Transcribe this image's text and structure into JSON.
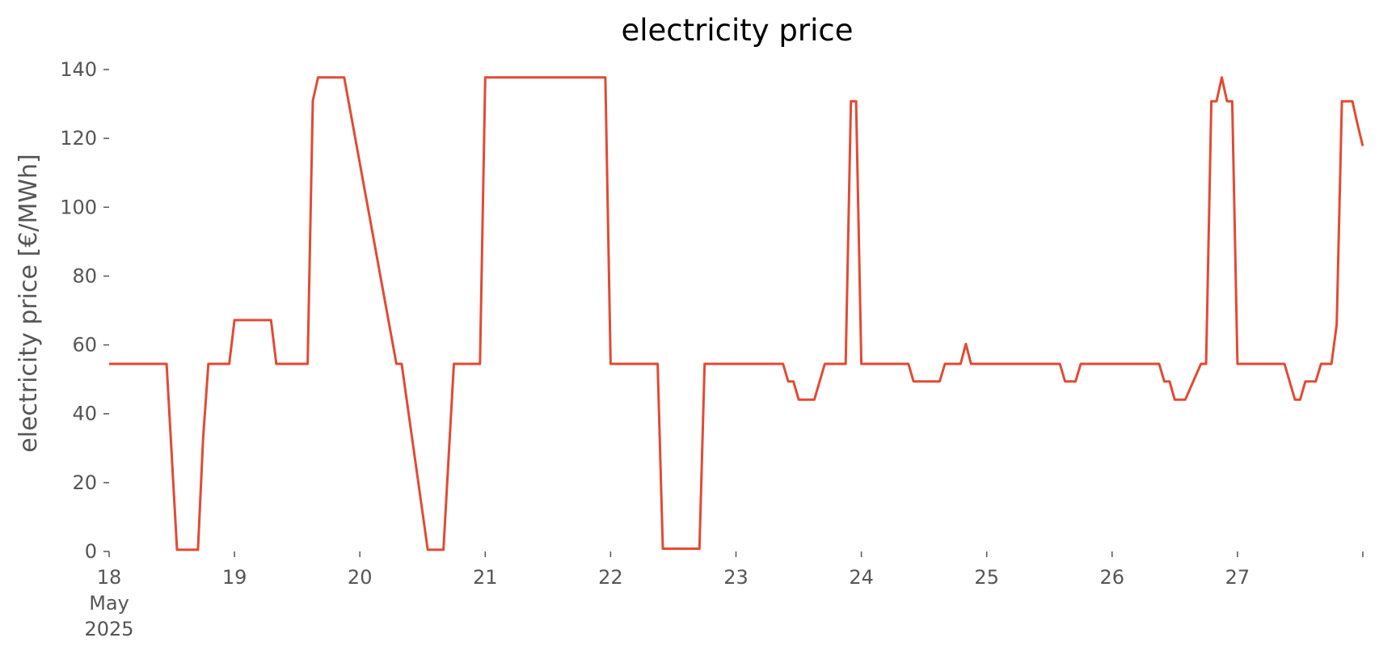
{
  "chart_data": {
    "type": "line",
    "title": "electricity price",
    "xlabel": "",
    "ylabel": "electricity price [€/MWh]",
    "ylim": [
      0,
      140
    ],
    "yticks": [
      "0",
      "20",
      "40",
      "60",
      "80",
      "100",
      "120",
      "140"
    ],
    "xlim": [
      "2025-05-18T00:00",
      "2025-05-28T00:00"
    ],
    "xticks": [
      {
        "at": "2025-05-18T00:00",
        "label": [
          "18",
          "May",
          "2025"
        ]
      },
      {
        "at": "2025-05-19T00:00",
        "label": [
          "19"
        ]
      },
      {
        "at": "2025-05-20T00:00",
        "label": [
          "20"
        ]
      },
      {
        "at": "2025-05-21T00:00",
        "label": [
          "21"
        ]
      },
      {
        "at": "2025-05-22T00:00",
        "label": [
          "22"
        ]
      },
      {
        "at": "2025-05-23T00:00",
        "label": [
          "23"
        ]
      },
      {
        "at": "2025-05-24T00:00",
        "label": [
          "24"
        ]
      },
      {
        "at": "2025-05-25T00:00",
        "label": [
          "25"
        ]
      },
      {
        "at": "2025-05-26T00:00",
        "label": [
          "26"
        ]
      },
      {
        "at": "2025-05-27T00:00",
        "label": [
          "27"
        ]
      },
      {
        "at": "2025-05-28T00:00",
        "label": [
          ""
        ]
      }
    ],
    "grid": false,
    "legend": "none",
    "color": "#e24a33",
    "series": [
      {
        "x": [
          "2025-05-18T00:00",
          "2025-05-18T10:00",
          "2025-05-18T11:00",
          "2025-05-18T13:00",
          "2025-05-18T17:00",
          "2025-05-18T18:00",
          "2025-05-18T19:00",
          "2025-05-18T23:00",
          "2025-05-19T00:00",
          "2025-05-19T07:00",
          "2025-05-19T08:00",
          "2025-05-19T14:00",
          "2025-05-19T15:00",
          "2025-05-19T16:00",
          "2025-05-19T21:00",
          "2025-05-20T07:00",
          "2025-05-20T08:00",
          "2025-05-20T13:00",
          "2025-05-20T16:00",
          "2025-05-20T18:00",
          "2025-05-20T23:00",
          "2025-05-21T00:00",
          "2025-05-21T23:00",
          "2025-05-22T00:00",
          "2025-05-22T09:00",
          "2025-05-22T10:00",
          "2025-05-22T17:00",
          "2025-05-22T18:00",
          "2025-05-23T09:00",
          "2025-05-23T10:00",
          "2025-05-23T11:00",
          "2025-05-23T12:00",
          "2025-05-23T15:00",
          "2025-05-23T17:00",
          "2025-05-23T21:00",
          "2025-05-23T22:00",
          "2025-05-23T23:00",
          "2025-05-24T00:00",
          "2025-05-24T09:00",
          "2025-05-24T10:00",
          "2025-05-24T15:00",
          "2025-05-24T16:00",
          "2025-05-24T19:00",
          "2025-05-24T20:00",
          "2025-05-24T21:00",
          "2025-05-25T14:00",
          "2025-05-25T15:00",
          "2025-05-25T17:00",
          "2025-05-25T18:00",
          "2025-05-26T09:00",
          "2025-05-26T10:00",
          "2025-05-26T11:00",
          "2025-05-26T12:00",
          "2025-05-26T14:00",
          "2025-05-26T17:00",
          "2025-05-26T18:00",
          "2025-05-26T19:00",
          "2025-05-26T20:00",
          "2025-05-26T21:00",
          "2025-05-26T22:00",
          "2025-05-26T23:00",
          "2025-05-27T00:00",
          "2025-05-27T09:00",
          "2025-05-27T11:00",
          "2025-05-27T12:00",
          "2025-05-27T13:00",
          "2025-05-27T15:00",
          "2025-05-27T16:00",
          "2025-05-27T18:00",
          "2025-05-27T19:00",
          "2025-05-27T20:00",
          "2025-05-27T22:00",
          "2025-05-27T23:00",
          "2025-05-27T23:59"
        ],
        "y": [
          54.5,
          54.5,
          54.5,
          0.5,
          0.5,
          33,
          54.5,
          54.5,
          67.2,
          67.2,
          54.5,
          54.5,
          131,
          137.7,
          137.7,
          54.5,
          54.5,
          0.5,
          0.5,
          54.5,
          54.5,
          137.7,
          137.7,
          54.5,
          54.5,
          0.8,
          0.8,
          54.5,
          54.5,
          49.4,
          49.4,
          44.1,
          44.1,
          54.5,
          54.5,
          130.8,
          130.8,
          54.5,
          54.5,
          49.4,
          49.4,
          54.5,
          54.5,
          60.3,
          54.5,
          54.5,
          49.4,
          49.4,
          54.5,
          54.5,
          49.4,
          49.4,
          44.1,
          44.1,
          54.5,
          54.5,
          130.8,
          130.8,
          137.7,
          130.8,
          130.8,
          54.5,
          54.5,
          44.1,
          44.1,
          49.4,
          49.4,
          54.5,
          54.5,
          66,
          130.8,
          130.8,
          124,
          117.8
        ]
      }
    ]
  }
}
